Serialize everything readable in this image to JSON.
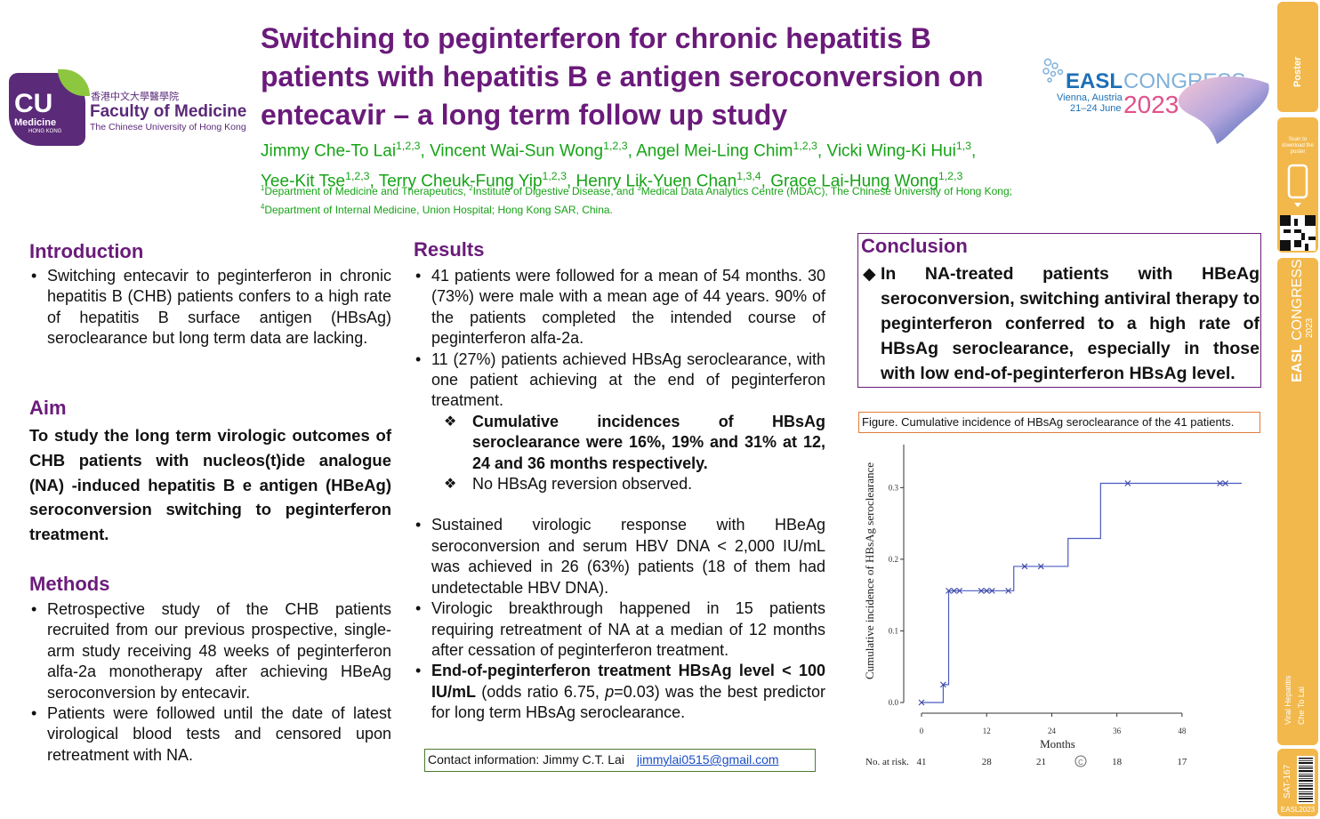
{
  "header": {
    "logo": {
      "badge_text": "CU",
      "badge_sub": "Medicine",
      "badge_small": "HONG KONG",
      "chinese_name": "香港中文大學醫學院",
      "faculty": "Faculty of Medicine",
      "university": "The Chinese University of Hong Kong"
    },
    "title": "Switching to peginterferon for chronic hepatitis B patients with hepatitis B e antigen seroconversion on entecavir – a long term follow up study",
    "authors": [
      {
        "name": "Jimmy Che-To Lai",
        "aff": "1,2,3"
      },
      {
        "name": "Vincent Wai-Sun Wong",
        "aff": "1,2,3"
      },
      {
        "name": "Angel Mei-Ling Chim",
        "aff": "1,2,3"
      },
      {
        "name": "Vicki Wing-Ki Hui",
        "aff": "1,3"
      },
      {
        "name": "Yee-Kit Tse",
        "aff": "1,2,3"
      },
      {
        "name": "Terry Cheuk-Fung Yip",
        "aff": "1,2,3"
      },
      {
        "name": "Henry Lik-Yuen Chan",
        "aff": "1,3,4"
      },
      {
        "name": "Grace Lai-Hung Wong",
        "aff": "1,2,3"
      }
    ],
    "affiliations": [
      {
        "num": "1",
        "text": "Department of Medicine and Therapeutics, "
      },
      {
        "num": "2",
        "text": "Institute of Digestive Disease, and "
      },
      {
        "num": "3",
        "text": "Medical Data Analytics Centre (MDAC),  The Chinese University of Hong Kong; "
      },
      {
        "num": "4",
        "text": "Department of Internal Medicine, Union Hospital; Hong Kong SAR, China."
      }
    ],
    "congress": {
      "brand": "EASL",
      "word": "CONGRESS",
      "city": "Vienna, Austria",
      "dates": "21–24 June",
      "year": "2023"
    }
  },
  "introduction": {
    "heading": "Introduction",
    "bullets": [
      "Switching entecavir to peginterferon in chronic hepatitis B (CHB) patients confers to a high rate of hepatitis B surface antigen (HBsAg) seroclearance but long term data are lacking."
    ]
  },
  "aim": {
    "heading": "Aim",
    "text": "To study the long term virologic outcomes of CHB patients with nucleos(t)ide analogue (NA) -induced hepatitis B e antigen (HBeAg) seroconversion switching to peginterferon treatment."
  },
  "methods": {
    "heading": "Methods",
    "bullets": [
      "Retrospective study of the CHB patients recruited from our previous prospective, single-arm study receiving 48 weeks of peginterferon alfa-2a monotherapy after achieving HBeAg seroconversion by entecavir.",
      "Patients were followed until the date of latest virological blood tests and censored upon retreatment with NA."
    ]
  },
  "results": {
    "heading": "Results",
    "b1": "41 patients were followed for a mean of 54 months. 30 (73%) were male with a mean age of 44 years. 90% of the patients completed the intended course of peginterferon alfa-2a.",
    "b2": "11 (27%) patients achieved HBsAg seroclearance, with one patient achieving at the end of peginterferon treatment.",
    "sub1": "Cumulative incidences of HBsAg seroclearance were 16%, 19% and 31% at 12, 24 and 36 months respectively.",
    "sub2": "No HBsAg reversion observed.",
    "b3": "Sustained virologic response with HBeAg seroconversion and serum HBV DNA < 2,000 IU/mL was achieved in 26 (63%) patients (18 of them had undetectable HBV DNA).",
    "b4": "Virologic breakthrough happened in 15 patients requiring retreatment of NA at a median of 12 months after cessation of peginterferon treatment.",
    "b5_bold": "End-of-peginterferon treatment HBsAg level < 100 IU/mL",
    "b5_pre": " (odds ratio 6.75, ",
    "b5_p": "p",
    "b5_rest": "=0.03) was the best predictor for long term HBsAg seroclearance."
  },
  "conclusion": {
    "heading": "Conclusion",
    "text": "In NA-treated patients with HBeAg seroconversion, switching antiviral therapy to peginterferon conferred to a high rate of HBsAg seroclearance, especially in those with low end-of-peginterferon HBsAg level."
  },
  "figure": {
    "caption": "Figure. Cumulative incidence of HBsAg seroclearance of the 41 patients.",
    "at_risk_label": "No. at risk.",
    "at_risk": [
      "41",
      "28",
      "21",
      "18",
      "17"
    ]
  },
  "contact": {
    "label": "Contact information: Jimmy C.T. Lai",
    "email": "jimmylai0515@gmail.com"
  },
  "side_strip": {
    "scan_text": "Scan to download the poster",
    "topic": "Viral Hepatitis",
    "author": "Che To Lai",
    "code": "SAT-167",
    "footer": "EASL2023"
  },
  "chart_data": {
    "type": "line",
    "subtype": "step (Kaplan-Meier cumulative incidence)",
    "xlabel": "Months",
    "ylabel": "Cumulative incidence of HBsAg seroclearance",
    "xlim": [
      0,
      59
    ],
    "ylim": [
      0,
      0.36
    ],
    "xticks": [
      "0",
      "12",
      "24",
      "36",
      "48"
    ],
    "yticks": [
      "0.0",
      "0.1",
      "0.2",
      "0.3"
    ],
    "step_x": [
      0,
      4,
      5,
      17,
      27,
      33,
      59
    ],
    "step_y": [
      0,
      0.025,
      0.156,
      0.19,
      0.229,
      0.306,
      0.306
    ],
    "censored": [
      {
        "x": 0,
        "y": 0
      },
      {
        "x": 4,
        "y": 0.025
      },
      {
        "x": 5,
        "y": 0.156
      },
      {
        "x": 6,
        "y": 0.156
      },
      {
        "x": 7,
        "y": 0.156
      },
      {
        "x": 11,
        "y": 0.156
      },
      {
        "x": 12,
        "y": 0.156
      },
      {
        "x": 13,
        "y": 0.156
      },
      {
        "x": 16,
        "y": 0.156
      },
      {
        "x": 19,
        "y": 0.19
      },
      {
        "x": 22,
        "y": 0.19
      },
      {
        "x": 38,
        "y": 0.306
      },
      {
        "x": 55,
        "y": 0.306
      },
      {
        "x": 56,
        "y": 0.306
      }
    ],
    "line_color": "#4a5cc0"
  }
}
